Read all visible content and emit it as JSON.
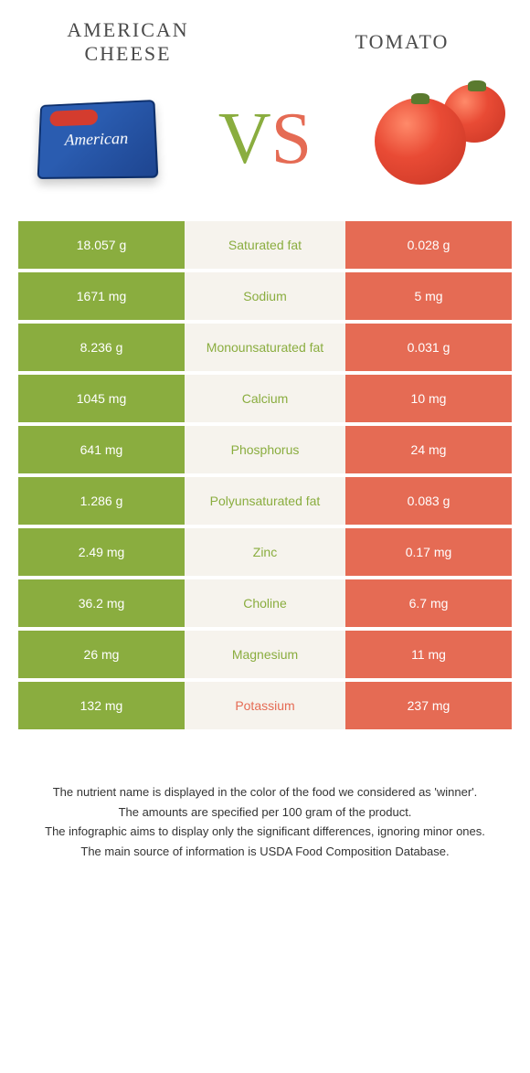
{
  "title_left": "AMERICAN CHEESE",
  "title_right": "TOMATO",
  "vs_letters": {
    "v": "V",
    "s": "S"
  },
  "colors": {
    "green": "#8aad3f",
    "coral": "#e56b54",
    "mid_bg": "#f6f3ed",
    "mid_text_green": "#8aad3f",
    "mid_text_coral": "#e56b54",
    "cell_text": "#ffffff"
  },
  "rows": [
    {
      "left": "18.057 g",
      "label": "Saturated fat",
      "right": "0.028 g",
      "winner": "left"
    },
    {
      "left": "1671 mg",
      "label": "Sodium",
      "right": "5 mg",
      "winner": "left"
    },
    {
      "left": "8.236 g",
      "label": "Monounsaturated fat",
      "right": "0.031 g",
      "winner": "left"
    },
    {
      "left": "1045 mg",
      "label": "Calcium",
      "right": "10 mg",
      "winner": "left"
    },
    {
      "left": "641 mg",
      "label": "Phosphorus",
      "right": "24 mg",
      "winner": "left"
    },
    {
      "left": "1.286 g",
      "label": "Polyunsaturated fat",
      "right": "0.083 g",
      "winner": "left"
    },
    {
      "left": "2.49 mg",
      "label": "Zinc",
      "right": "0.17 mg",
      "winner": "left"
    },
    {
      "left": "36.2 mg",
      "label": "Choline",
      "right": "6.7 mg",
      "winner": "left"
    },
    {
      "left": "26 mg",
      "label": "Magnesium",
      "right": "11 mg",
      "winner": "left"
    },
    {
      "left": "132 mg",
      "label": "Potassium",
      "right": "237 mg",
      "winner": "right"
    }
  ],
  "footnotes": [
    "The nutrient name is displayed in the color of the food we considered as 'winner'.",
    "The amounts are specified per 100 gram of the product.",
    "The infographic aims to display only the significant differences, ignoring minor ones.",
    "The main source of information is USDA Food Composition Database."
  ]
}
